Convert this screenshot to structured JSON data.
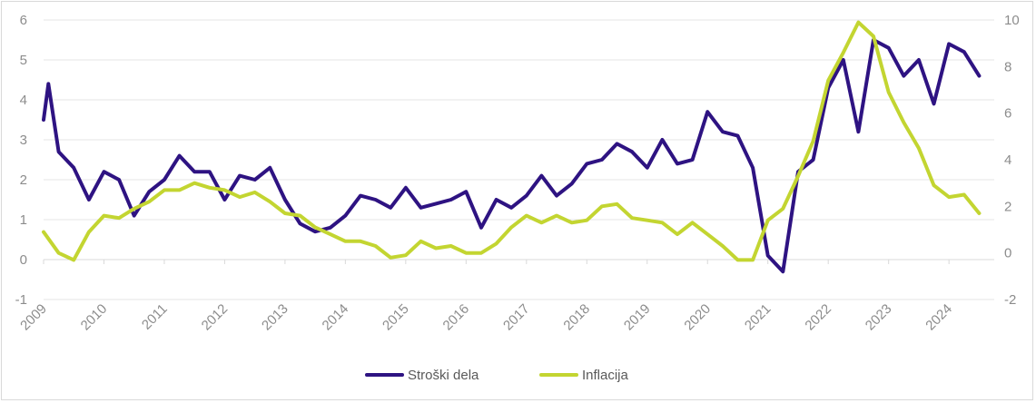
{
  "chart_data": {
    "type": "line",
    "title": "",
    "xlabel": "",
    "ylabel_left": "",
    "ylabel_right": "",
    "x_ticks": [
      "2009",
      "2010",
      "2011",
      "2012",
      "2013",
      "2014",
      "2015",
      "2016",
      "2017",
      "2018",
      "2019",
      "2020",
      "2021",
      "2022",
      "2023",
      "2024"
    ],
    "x_range": [
      2009.0,
      2024.75
    ],
    "left_axis": {
      "min": -1,
      "max": 6,
      "ticks": [
        "-1",
        "0",
        "1",
        "2",
        "3",
        "4",
        "5",
        "6"
      ]
    },
    "right_axis": {
      "min": -2,
      "max": 10,
      "ticks": [
        "-2",
        "0",
        "2",
        "4",
        "6",
        "8",
        "10"
      ]
    },
    "grid": "horizontal",
    "legend_position": "bottom",
    "colors": {
      "series_labor": "#2e1382",
      "series_inflation": "#c3d531",
      "grid": "#e6e6e6",
      "axis": "#d9d9d9"
    },
    "series": [
      {
        "name": "Stroški dela",
        "axis": "left",
        "x": [
          2009.0,
          2009.08,
          2009.25,
          2009.5,
          2009.75,
          2010.0,
          2010.25,
          2010.5,
          2010.75,
          2011.0,
          2011.25,
          2011.5,
          2011.75,
          2012.0,
          2012.25,
          2012.5,
          2012.75,
          2013.0,
          2013.25,
          2013.5,
          2013.75,
          2014.0,
          2014.25,
          2014.5,
          2014.75,
          2015.0,
          2015.25,
          2015.5,
          2015.75,
          2016.0,
          2016.25,
          2016.5,
          2016.75,
          2017.0,
          2017.25,
          2017.5,
          2017.75,
          2018.0,
          2018.25,
          2018.5,
          2018.75,
          2019.0,
          2019.25,
          2019.5,
          2019.75,
          2020.0,
          2020.25,
          2020.5,
          2020.75,
          2021.0,
          2021.25,
          2021.5,
          2021.75,
          2022.0,
          2022.25,
          2022.5,
          2022.75,
          2023.0,
          2023.25,
          2023.5,
          2023.75,
          2024.0,
          2024.25,
          2024.5
        ],
        "y": [
          3.5,
          4.4,
          2.7,
          2.3,
          1.5,
          2.2,
          2.0,
          1.1,
          1.7,
          2.0,
          2.6,
          2.2,
          2.2,
          1.5,
          2.1,
          2.0,
          2.3,
          1.5,
          0.9,
          0.7,
          0.8,
          1.1,
          1.6,
          1.5,
          1.3,
          1.8,
          1.3,
          1.4,
          1.5,
          1.7,
          0.8,
          1.5,
          1.3,
          1.6,
          2.1,
          1.6,
          1.9,
          2.4,
          2.5,
          2.9,
          2.7,
          2.3,
          3.0,
          2.4,
          2.5,
          3.7,
          3.2,
          3.1,
          2.3,
          0.1,
          -0.3,
          2.2,
          2.5,
          4.3,
          5.0,
          3.2,
          5.5,
          5.3,
          4.6,
          5.0,
          3.9,
          5.4,
          5.2,
          4.6
        ]
      },
      {
        "name": "Inflacija",
        "axis": "right",
        "x": [
          2009.0,
          2009.25,
          2009.5,
          2009.75,
          2010.0,
          2010.25,
          2010.5,
          2010.75,
          2011.0,
          2011.25,
          2011.5,
          2011.75,
          2012.0,
          2012.25,
          2012.5,
          2012.75,
          2013.0,
          2013.25,
          2013.5,
          2013.75,
          2014.0,
          2014.25,
          2014.5,
          2014.75,
          2015.0,
          2015.25,
          2015.5,
          2015.75,
          2016.0,
          2016.25,
          2016.5,
          2016.75,
          2017.0,
          2017.25,
          2017.5,
          2017.75,
          2018.0,
          2018.25,
          2018.5,
          2018.75,
          2019.0,
          2019.25,
          2019.5,
          2019.75,
          2020.0,
          2020.25,
          2020.5,
          2020.75,
          2021.0,
          2021.25,
          2021.5,
          2021.75,
          2022.0,
          2022.25,
          2022.5,
          2022.75,
          2023.0,
          2023.25,
          2023.5,
          2023.75,
          2024.0,
          2024.25,
          2024.5
        ],
        "y": [
          0.9,
          0.0,
          -0.3,
          0.9,
          1.6,
          1.5,
          1.9,
          2.2,
          2.7,
          2.7,
          3.0,
          2.8,
          2.7,
          2.4,
          2.6,
          2.2,
          1.7,
          1.6,
          1.1,
          0.8,
          0.5,
          0.5,
          0.3,
          -0.2,
          -0.1,
          0.5,
          0.2,
          0.3,
          0.0,
          0.0,
          0.4,
          1.1,
          1.6,
          1.3,
          1.6,
          1.3,
          1.4,
          2.0,
          2.1,
          1.5,
          1.4,
          1.3,
          0.8,
          1.3,
          0.8,
          0.3,
          -0.3,
          -0.3,
          1.4,
          1.9,
          3.3,
          4.8,
          7.4,
          8.6,
          9.9,
          9.3,
          6.9,
          5.6,
          4.5,
          2.9,
          2.4,
          2.5,
          1.7
        ]
      }
    ]
  }
}
